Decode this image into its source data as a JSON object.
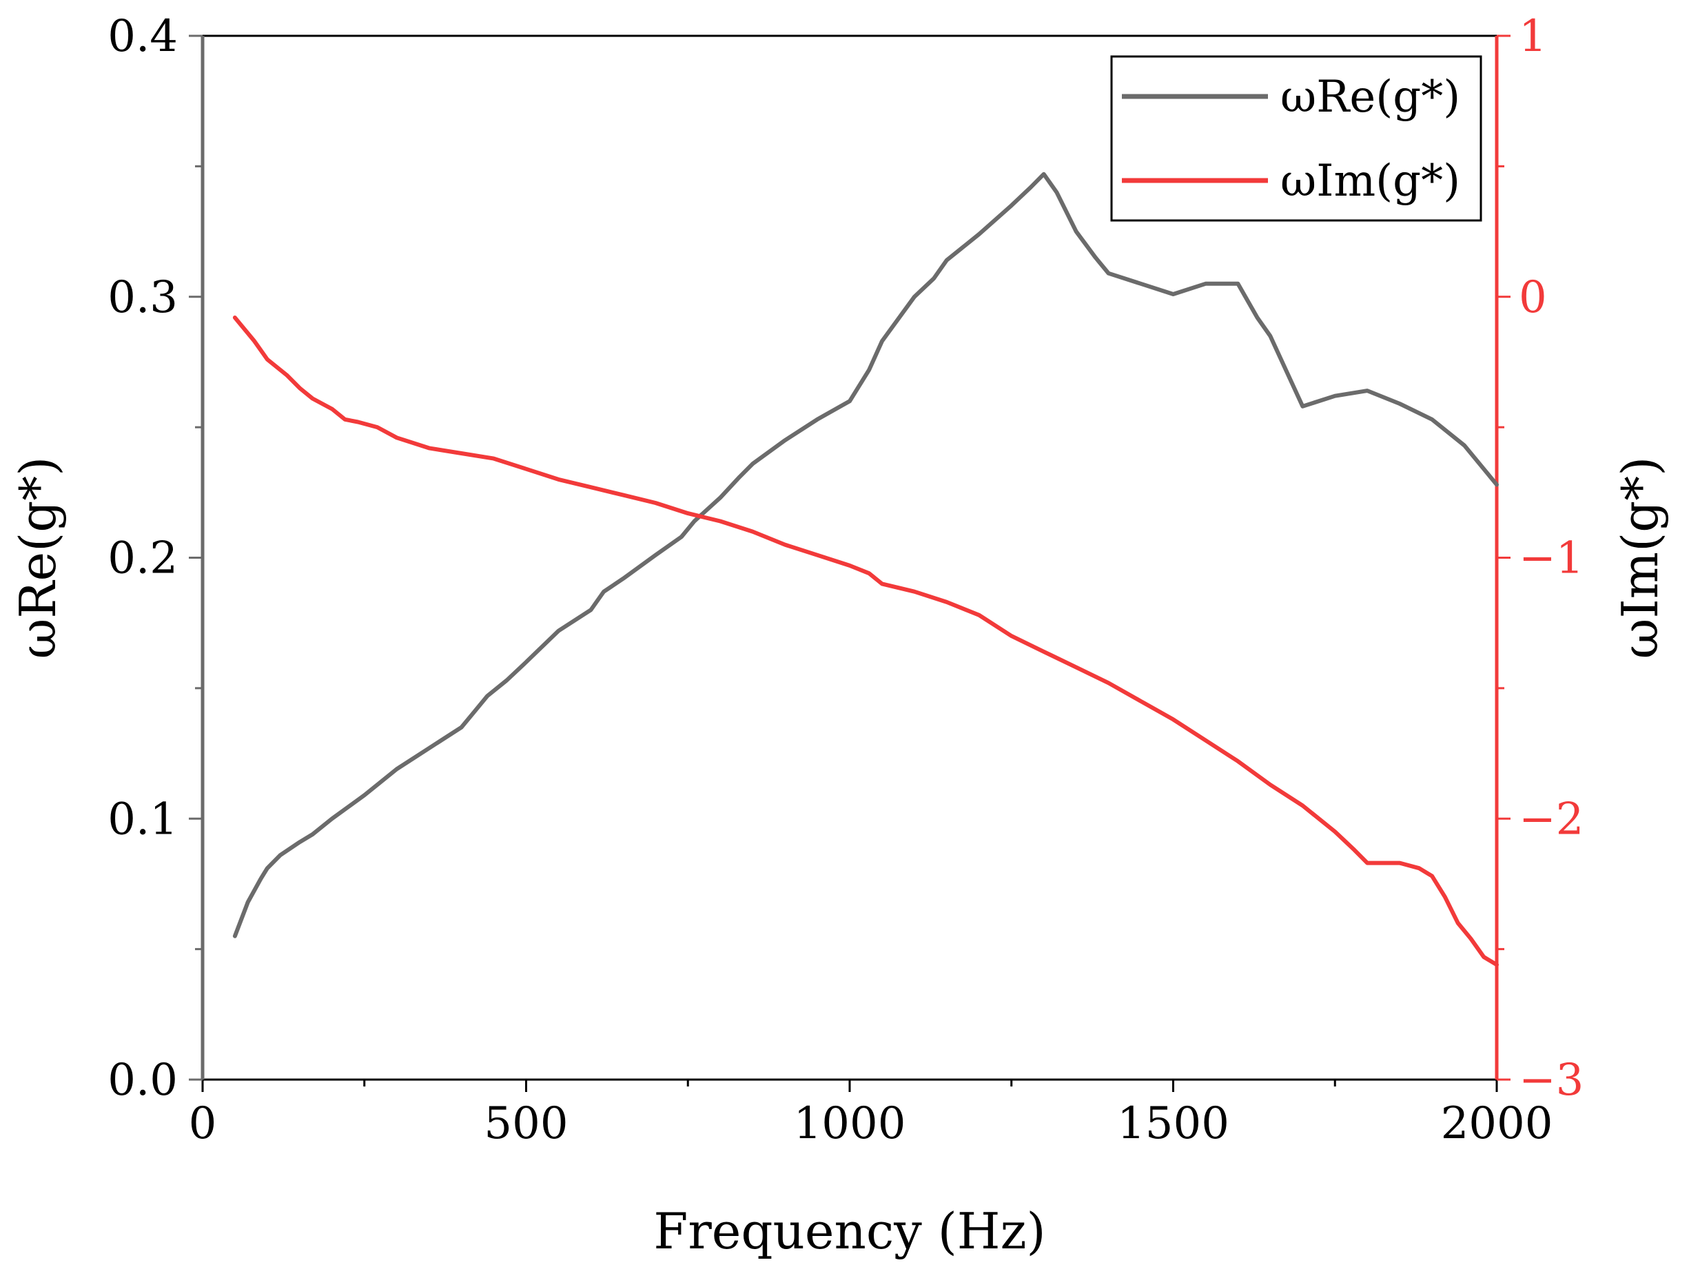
{
  "chart_data": {
    "type": "line",
    "title": "",
    "xlabel": "Frequency (Hz)",
    "ylabel": "ωRe(g*)",
    "y2label": "ωIm(g*)",
    "xlim": [
      0,
      2000
    ],
    "ylim": [
      0.0,
      0.4
    ],
    "y2lim": [
      -3,
      1
    ],
    "xticks": [
      0,
      500,
      1000,
      1500,
      2000
    ],
    "xtick_labels": [
      "0",
      "500",
      "1000",
      "1500",
      "2000"
    ],
    "yticks": [
      0.0,
      0.1,
      0.2,
      0.3,
      0.4
    ],
    "ytick_labels": [
      "0.0",
      "0.1",
      "0.2",
      "0.3",
      "0.4"
    ],
    "y2ticks": [
      -3,
      -2,
      -1,
      0,
      1
    ],
    "y2tick_labels": [
      "−3",
      "−2",
      "−1",
      "0",
      "1"
    ],
    "grid": false,
    "legend_position": "top-right",
    "colors": {
      "re": "#6b6b6b",
      "im": "#f23a3a",
      "axis_right": "#f23a3a",
      "axis_left": "#6b6b6b",
      "frame": "#000000"
    },
    "series": [
      {
        "name": "ωRe(g*)",
        "axis": "left",
        "x": [
          50,
          70,
          90,
          100,
          120,
          150,
          170,
          200,
          250,
          300,
          350,
          400,
          420,
          440,
          470,
          500,
          550,
          600,
          620,
          650,
          700,
          740,
          760,
          800,
          830,
          850,
          900,
          950,
          1000,
          1030,
          1050,
          1100,
          1130,
          1150,
          1200,
          1250,
          1280,
          1300,
          1320,
          1350,
          1380,
          1400,
          1450,
          1500,
          1550,
          1600,
          1630,
          1650,
          1700,
          1750,
          1800,
          1850,
          1900,
          1950,
          2000
        ],
        "values": [
          0.055,
          0.068,
          0.077,
          0.081,
          0.086,
          0.091,
          0.094,
          0.1,
          0.109,
          0.119,
          0.127,
          0.135,
          0.141,
          0.147,
          0.153,
          0.16,
          0.172,
          0.18,
          0.187,
          0.192,
          0.201,
          0.208,
          0.214,
          0.223,
          0.231,
          0.236,
          0.245,
          0.253,
          0.26,
          0.272,
          0.283,
          0.3,
          0.307,
          0.314,
          0.324,
          0.335,
          0.342,
          0.347,
          0.34,
          0.325,
          0.315,
          0.309,
          0.305,
          0.301,
          0.305,
          0.305,
          0.292,
          0.285,
          0.258,
          0.262,
          0.264,
          0.259,
          0.253,
          0.243,
          0.228
        ]
      },
      {
        "name": "ωIm(g*)",
        "axis": "right",
        "x": [
          50,
          60,
          80,
          100,
          130,
          150,
          170,
          200,
          220,
          240,
          270,
          300,
          350,
          400,
          450,
          500,
          550,
          600,
          650,
          700,
          750,
          800,
          850,
          900,
          950,
          1000,
          1030,
          1050,
          1100,
          1150,
          1200,
          1250,
          1300,
          1350,
          1400,
          1450,
          1500,
          1550,
          1600,
          1650,
          1700,
          1750,
          1780,
          1800,
          1850,
          1880,
          1900,
          1920,
          1940,
          1960,
          1980,
          2000
        ],
        "values": [
          -0.08,
          -0.11,
          -0.17,
          -0.24,
          -0.3,
          -0.35,
          -0.39,
          -0.43,
          -0.47,
          -0.48,
          -0.5,
          -0.54,
          -0.58,
          -0.6,
          -0.62,
          -0.66,
          -0.7,
          -0.73,
          -0.76,
          -0.79,
          -0.83,
          -0.86,
          -0.9,
          -0.95,
          -0.99,
          -1.03,
          -1.06,
          -1.1,
          -1.13,
          -1.17,
          -1.22,
          -1.3,
          -1.36,
          -1.42,
          -1.48,
          -1.55,
          -1.62,
          -1.7,
          -1.78,
          -1.87,
          -1.95,
          -2.05,
          -2.12,
          -2.17,
          -2.17,
          -2.19,
          -2.22,
          -2.3,
          -2.4,
          -2.46,
          -2.53,
          -2.56
        ]
      }
    ]
  }
}
